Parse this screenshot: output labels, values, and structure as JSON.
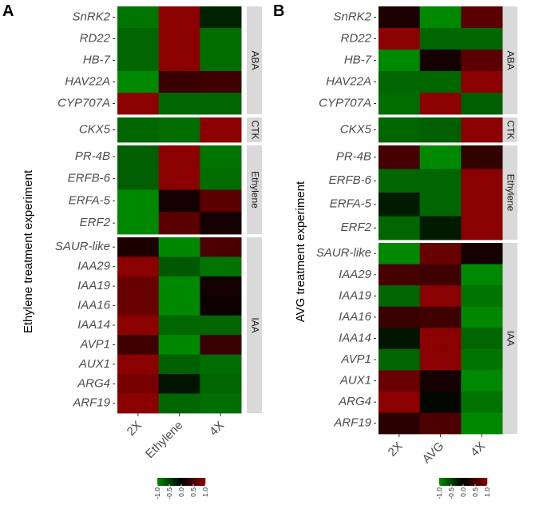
{
  "chart_data": [
    {
      "type": "heatmap",
      "panel_label": "A",
      "ylabel": "Ethylene treatment experiment",
      "columns": [
        "2X",
        "Ethylene",
        "4X"
      ],
      "color_scale": {
        "min": -1.0,
        "max": 1.0,
        "low": "#008800",
        "mid": "#000000",
        "high": "#8b0000",
        "ticks": [
          "-1.0",
          "-0.5",
          "0.0",
          "0.5",
          "1.0"
        ]
      },
      "groups": [
        {
          "name": "ABA",
          "rows": [
            {
              "gene": "SnRK2",
              "values": [
                -0.85,
                1.0,
                -0.25
              ]
            },
            {
              "gene": "RD22",
              "values": [
                -0.75,
                1.0,
                -0.8
              ]
            },
            {
              "gene": "HB-7",
              "values": [
                -0.75,
                1.0,
                -0.8
              ]
            },
            {
              "gene": "HAV22A",
              "values": [
                -1.0,
                0.4,
                0.45
              ]
            },
            {
              "gene": "CYP707A",
              "values": [
                1.0,
                -0.75,
                -0.75
              ]
            }
          ]
        },
        {
          "name": "CTK",
          "rows": [
            {
              "gene": "CKX5",
              "values": [
                -0.75,
                -0.8,
                1.0
              ]
            }
          ]
        },
        {
          "name": "Ethylene",
          "rows": [
            {
              "gene": "PR-4B",
              "values": [
                -0.7,
                1.0,
                -0.85
              ]
            },
            {
              "gene": "ERFB-6",
              "values": [
                -0.7,
                1.0,
                -0.8
              ]
            },
            {
              "gene": "ERFA-5",
              "values": [
                -1.0,
                0.15,
                0.65
              ]
            },
            {
              "gene": "ERF2",
              "values": [
                -1.0,
                0.65,
                0.15
              ]
            }
          ]
        },
        {
          "name": "IAA",
          "rows": [
            {
              "gene": "SAUR-like",
              "values": [
                0.2,
                -1.0,
                0.55
              ]
            },
            {
              "gene": "IAA29",
              "values": [
                1.0,
                -0.65,
                -0.85
              ]
            },
            {
              "gene": "IAA19",
              "values": [
                0.75,
                -1.0,
                0.15
              ]
            },
            {
              "gene": "IAA16",
              "values": [
                0.75,
                -1.0,
                0.1
              ]
            },
            {
              "gene": "IAA14",
              "values": [
                1.0,
                -0.75,
                -0.75
              ]
            },
            {
              "gene": "AVP1",
              "values": [
                0.45,
                -1.0,
                0.4
              ]
            },
            {
              "gene": "AUX1",
              "values": [
                1.0,
                -0.7,
                -0.8
              ]
            },
            {
              "gene": "ARG4",
              "values": [
                0.85,
                -0.15,
                -0.75
              ]
            },
            {
              "gene": "ARF19",
              "values": [
                1.0,
                -0.75,
                -0.8
              ]
            }
          ]
        }
      ]
    },
    {
      "type": "heatmap",
      "panel_label": "B",
      "ylabel": "AVG treatment experiment",
      "columns": [
        "2X",
        "AVG",
        "4X"
      ],
      "color_scale": {
        "min": -1.0,
        "max": 1.0,
        "low": "#008800",
        "mid": "#000000",
        "high": "#8b0000",
        "ticks": [
          "-1.0",
          "-0.5",
          "0.0",
          "0.5",
          "1.0"
        ]
      },
      "groups": [
        {
          "name": "ABA",
          "rows": [
            {
              "gene": "SnRK2",
              "values": [
                0.2,
                -1.0,
                0.65
              ]
            },
            {
              "gene": "RD22",
              "values": [
                1.0,
                -0.75,
                -0.75
              ]
            },
            {
              "gene": "HB-7",
              "values": [
                -1.0,
                0.15,
                0.65
              ]
            },
            {
              "gene": "HAV22A",
              "values": [
                -0.75,
                -0.75,
                1.0
              ]
            },
            {
              "gene": "CYP707A",
              "values": [
                -0.8,
                1.0,
                -0.7
              ]
            }
          ]
        },
        {
          "name": "CTK",
          "rows": [
            {
              "gene": "CKX5",
              "values": [
                -0.75,
                -0.7,
                1.0
              ]
            }
          ]
        },
        {
          "name": "Ethylene",
          "rows": [
            {
              "gene": "PR-4B",
              "values": [
                0.5,
                -1.0,
                0.35
              ]
            },
            {
              "gene": "ERFB-6",
              "values": [
                -0.75,
                -0.75,
                1.0
              ]
            },
            {
              "gene": "ERFA-5",
              "values": [
                -0.2,
                -0.75,
                1.0
              ]
            },
            {
              "gene": "ERF2",
              "values": [
                -0.75,
                -0.2,
                1.0
              ]
            }
          ]
        },
        {
          "name": "IAA",
          "rows": [
            {
              "gene": "SAUR-like",
              "values": [
                -1.0,
                0.75,
                0.15
              ]
            },
            {
              "gene": "IAA29",
              "values": [
                0.5,
                0.45,
                -1.0
              ]
            },
            {
              "gene": "IAA19",
              "values": [
                -0.75,
                1.0,
                -0.85
              ]
            },
            {
              "gene": "IAA16",
              "values": [
                0.4,
                0.45,
                -1.0
              ]
            },
            {
              "gene": "IAA14",
              "values": [
                -0.15,
                1.0,
                -0.75
              ]
            },
            {
              "gene": "AVP1",
              "values": [
                -0.75,
                1.0,
                -0.85
              ]
            },
            {
              "gene": "AUX1",
              "values": [
                0.75,
                0.15,
                -1.0
              ]
            },
            {
              "gene": "ARG4",
              "values": [
                1.0,
                -0.05,
                -0.85
              ]
            },
            {
              "gene": "ARF19",
              "values": [
                0.3,
                0.55,
                -1.0
              ]
            }
          ]
        }
      ]
    }
  ]
}
